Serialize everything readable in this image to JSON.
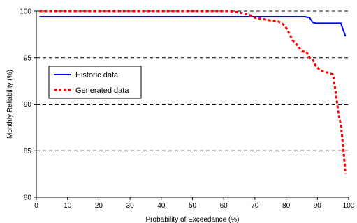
{
  "chart_data": {
    "type": "line",
    "title": "",
    "xlabel": "Probability of Exceedance (%)",
    "ylabel": "Monthly Reliability (%)",
    "xlim": [
      0,
      100
    ],
    "ylim": [
      80,
      100
    ],
    "xticks": [
      0,
      10,
      20,
      30,
      40,
      50,
      60,
      70,
      80,
      90,
      100
    ],
    "yticks": [
      80,
      85,
      90,
      95,
      100
    ],
    "grid": "horizontal dashed",
    "legend_position": "left",
    "series": [
      {
        "name": "Historic data",
        "color": "#0000ff",
        "style": "solid",
        "x": [
          1,
          86,
          87.5,
          88.5,
          89.5,
          97.5,
          99
        ],
        "y": [
          99.4,
          99.4,
          99.3,
          98.8,
          98.7,
          98.7,
          97.3
        ]
      },
      {
        "name": "Generated data",
        "color": "#ff0000",
        "style": "dashed",
        "x": [
          1,
          62,
          64,
          66,
          67,
          68,
          69,
          70,
          72,
          75,
          77.5,
          79,
          80,
          81,
          82,
          83.5,
          85,
          86.5,
          87.5,
          88.5,
          89.5,
          91,
          93,
          95,
          96,
          96.5,
          97,
          97.5,
          98,
          98.5,
          99
        ],
        "y": [
          100,
          100,
          99.9,
          99.8,
          99.7,
          99.6,
          99.5,
          99.3,
          99.2,
          99.0,
          98.9,
          98.6,
          98.2,
          97.6,
          96.9,
          96.4,
          95.7,
          95.6,
          95.0,
          94.8,
          94.1,
          93.6,
          93.4,
          93.2,
          91.0,
          89.6,
          88.5,
          87.9,
          86.2,
          84.5,
          82.5
        ]
      }
    ]
  }
}
